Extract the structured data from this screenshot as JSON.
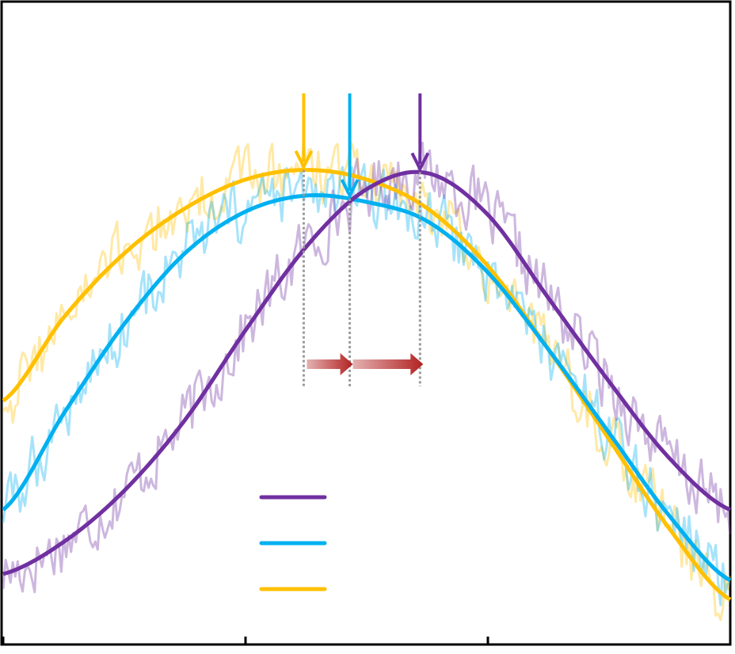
{
  "chart_data": {
    "type": "line",
    "title": "",
    "xlabel": "",
    "ylabel": "",
    "xlim": [
      0,
      3
    ],
    "ylim": [
      0,
      1
    ],
    "x_ticks": [
      0,
      1,
      2,
      3
    ],
    "grid": false,
    "legend": {
      "position": "bottom-center",
      "entries_without_text": true
    },
    "series": [
      {
        "color": "#7030A0",
        "fit_points": [
          [
            0,
            0.11
          ],
          [
            0.25,
            0.16
          ],
          [
            0.5,
            0.24
          ],
          [
            0.75,
            0.35
          ],
          [
            1.0,
            0.49
          ],
          [
            1.25,
            0.62
          ],
          [
            1.5,
            0.71
          ],
          [
            1.75,
            0.735
          ],
          [
            2.0,
            0.67
          ],
          [
            2.25,
            0.54
          ],
          [
            2.5,
            0.41
          ],
          [
            2.75,
            0.29
          ],
          [
            3.0,
            0.21
          ]
        ],
        "peak_x": 1.72,
        "noisy_trace": {
          "amplitude": 0.045,
          "opacity": 0.35
        }
      },
      {
        "color": "#00B0F0",
        "fit_points": [
          [
            0,
            0.21
          ],
          [
            0.25,
            0.36
          ],
          [
            0.5,
            0.5
          ],
          [
            0.75,
            0.61
          ],
          [
            1.0,
            0.675
          ],
          [
            1.25,
            0.7
          ],
          [
            1.5,
            0.69
          ],
          [
            1.75,
            0.66
          ],
          [
            2.0,
            0.58
          ],
          [
            2.25,
            0.46
          ],
          [
            2.5,
            0.33
          ],
          [
            2.75,
            0.2
          ],
          [
            3.0,
            0.1
          ]
        ],
        "peak_x": 1.43,
        "noisy_trace": {
          "amplitude": 0.045,
          "opacity": 0.35
        }
      },
      {
        "color": "#FFC000",
        "fit_points": [
          [
            0,
            0.38
          ],
          [
            0.25,
            0.51
          ],
          [
            0.5,
            0.61
          ],
          [
            0.75,
            0.68
          ],
          [
            1.0,
            0.725
          ],
          [
            1.25,
            0.74
          ],
          [
            1.5,
            0.725
          ],
          [
            1.75,
            0.68
          ],
          [
            2.0,
            0.59
          ],
          [
            2.25,
            0.46
          ],
          [
            2.5,
            0.32
          ],
          [
            2.75,
            0.18
          ],
          [
            3.0,
            0.07
          ]
        ],
        "peak_x": 1.24,
        "noisy_trace": {
          "amplitude": 0.045,
          "opacity": 0.35
        }
      }
    ],
    "peak_shift_arrow_color": "#B22222",
    "guide_line_color": "#999999"
  }
}
